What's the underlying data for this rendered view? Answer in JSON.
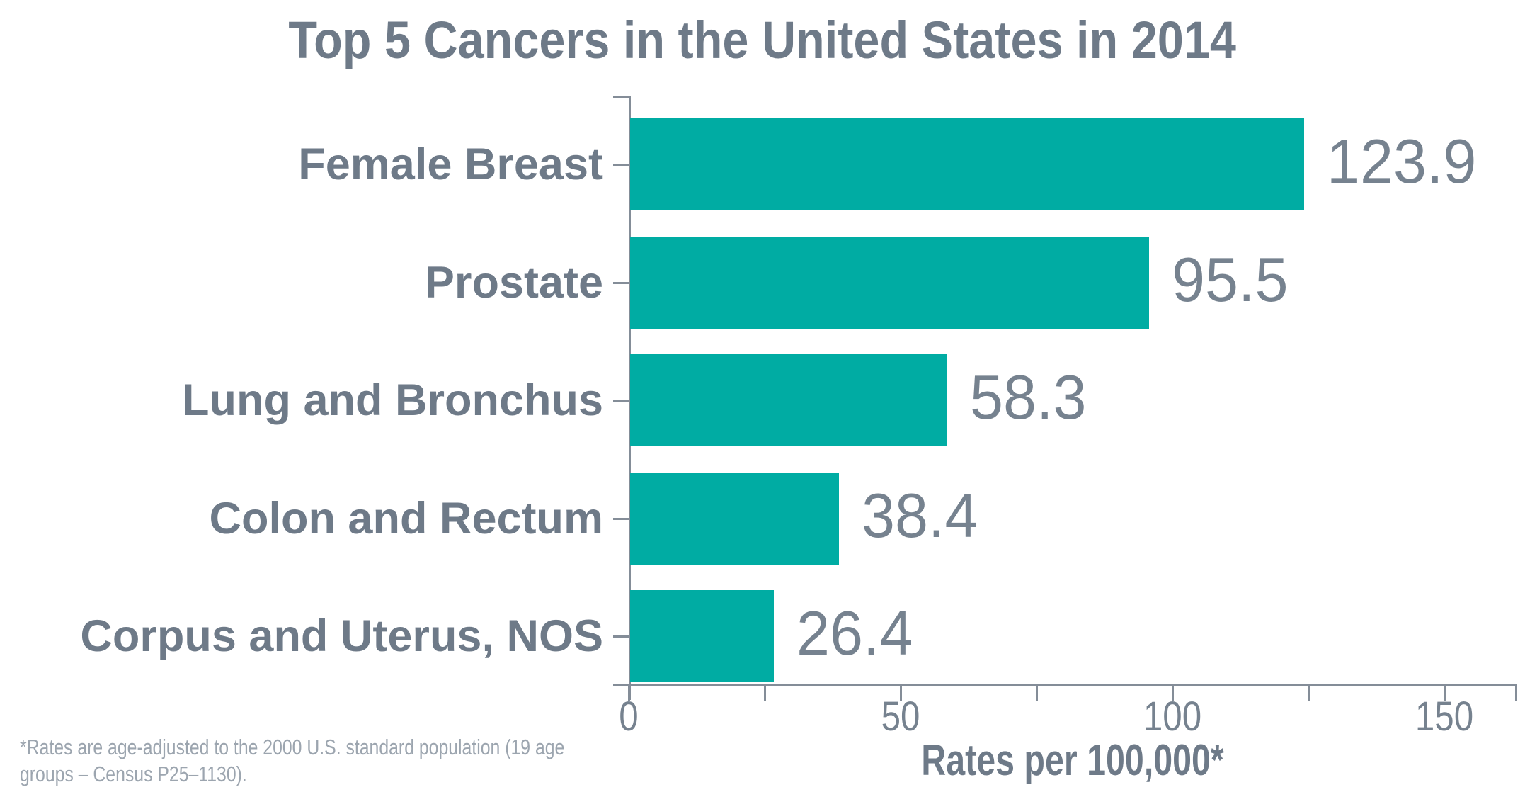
{
  "title": "Top 5 Cancers in the United States in 2014",
  "footnote_lines": [
    "*Rates are age-adjusted to the 2000 U.S. standard population (19 age",
    "groups – Census P25–1130)."
  ],
  "colors": {
    "bar": "#00ACA3",
    "label": "#6E7A88",
    "value": "#76828F",
    "axis": "#848D98",
    "footnote": "#9CA5AF"
  },
  "chart_data": {
    "type": "bar",
    "orientation": "horizontal",
    "title": "Top 5 Cancers in the United States in 2014",
    "categories": [
      "Female Breast",
      "Prostate",
      "Lung and Bronchus",
      "Colon and Rectum",
      "Corpus and Uterus, NOS"
    ],
    "values": [
      123.9,
      95.5,
      58.3,
      38.4,
      26.4
    ],
    "value_labels": [
      "123.9",
      "95.5",
      "58.3",
      "38.4",
      "26.4"
    ],
    "xlabel": "Rates per 100,000*",
    "xlim": [
      0,
      163
    ],
    "xticks": [
      0,
      50,
      100,
      150
    ],
    "minor_tick_step": 25,
    "grid": false,
    "legend": "none",
    "bar_color": "#00ACA3"
  }
}
